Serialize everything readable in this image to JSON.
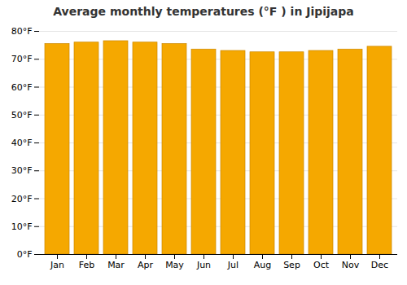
{
  "chart_data": {
    "type": "bar",
    "title": "Average monthly temperatures (°F ) in Jipijapa",
    "categories": [
      "Jan",
      "Feb",
      "Mar",
      "Apr",
      "May",
      "Jun",
      "Jul",
      "Aug",
      "Sep",
      "Oct",
      "Nov",
      "Dec"
    ],
    "values": [
      75.5,
      76.0,
      76.5,
      76.0,
      75.5,
      73.5,
      73.0,
      72.5,
      72.5,
      73.0,
      73.5,
      74.5
    ],
    "color": "#F5A800",
    "ylim": [
      0,
      80
    ],
    "yticks": [
      {
        "value": 0,
        "label": "0°F"
      },
      {
        "value": 10,
        "label": "10°F"
      },
      {
        "value": 20,
        "label": "20°F"
      },
      {
        "value": 30,
        "label": "30°F"
      },
      {
        "value": 40,
        "label": "40°F"
      },
      {
        "value": 50,
        "label": "50°F"
      },
      {
        "value": 60,
        "label": "60°F"
      },
      {
        "value": 70,
        "label": "70°F"
      },
      {
        "value": 80,
        "label": "80°F"
      }
    ],
    "grid": true
  }
}
